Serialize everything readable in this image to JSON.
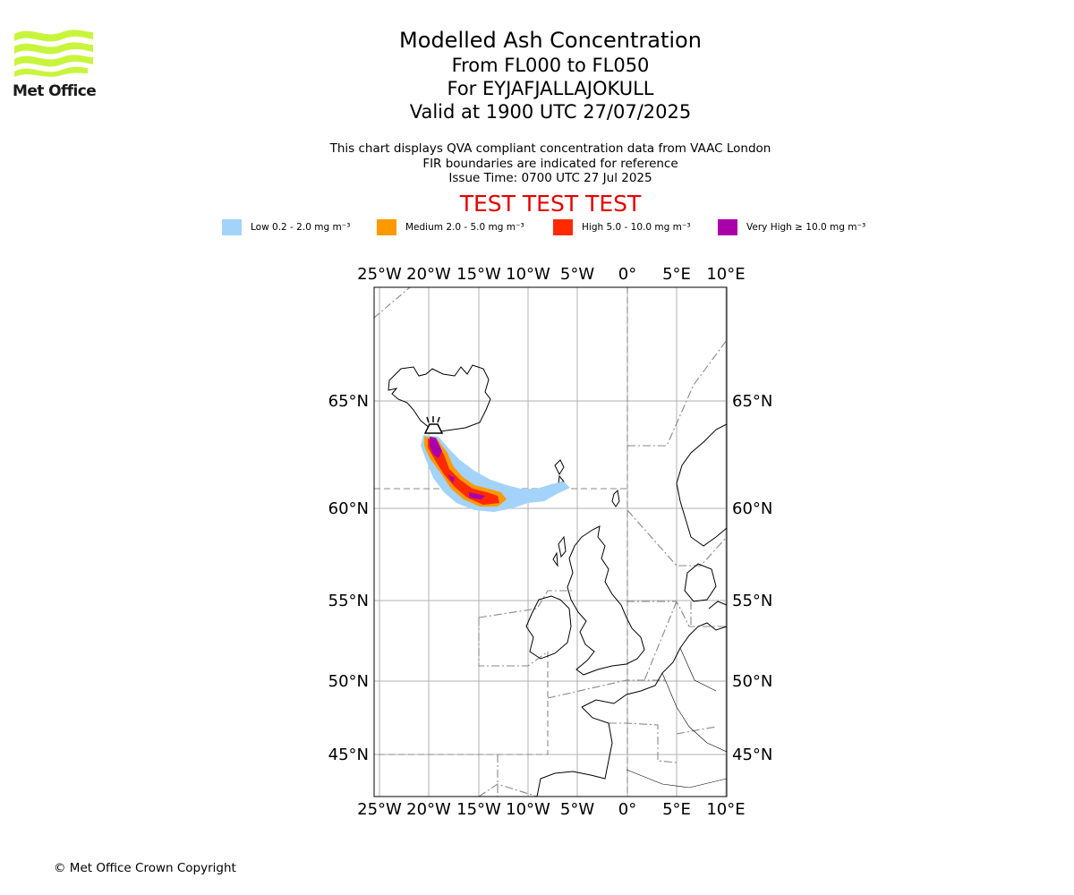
{
  "logo": {
    "text": "Met Office"
  },
  "title": {
    "line1": "Modelled Ash Concentration",
    "line2": "From FL000 to FL050",
    "line3": "For EYJAFJALLAJOKULL",
    "line4": "Valid at 1900 UTC 27/07/2025"
  },
  "notes": {
    "line1": "This chart displays QVA compliant concentration data from VAAC London",
    "line2": "FIR boundaries are indicated for reference",
    "line3": "Issue Time: 0700 UTC 27 Jul 2025"
  },
  "test_banner": "TEST TEST TEST",
  "legend": [
    {
      "label": "Low 0.2 - 2.0 mg m⁻³",
      "color": "#a3d3fb"
    },
    {
      "label": "Medium 2.0 - 5.0 mg m⁻³",
      "color": "#ff9900"
    },
    {
      "label": "High 5.0 - 10.0 mg m⁻³",
      "color": "#ff2a00"
    },
    {
      "label": "Very High  ≥  10.0 mg m⁻³",
      "color": "#aa00aa"
    }
  ],
  "map": {
    "lon_labels": [
      "25°W",
      "20°W",
      "15°W",
      "10°W",
      "5°W",
      "0°",
      "5°E",
      "10°E"
    ],
    "lat_labels": [
      "65°N",
      "60°N",
      "55°N",
      "50°N",
      "45°N"
    ],
    "volcano_icon": "volcano-icon"
  },
  "copyright": "© Met Office Crown Copyright"
}
